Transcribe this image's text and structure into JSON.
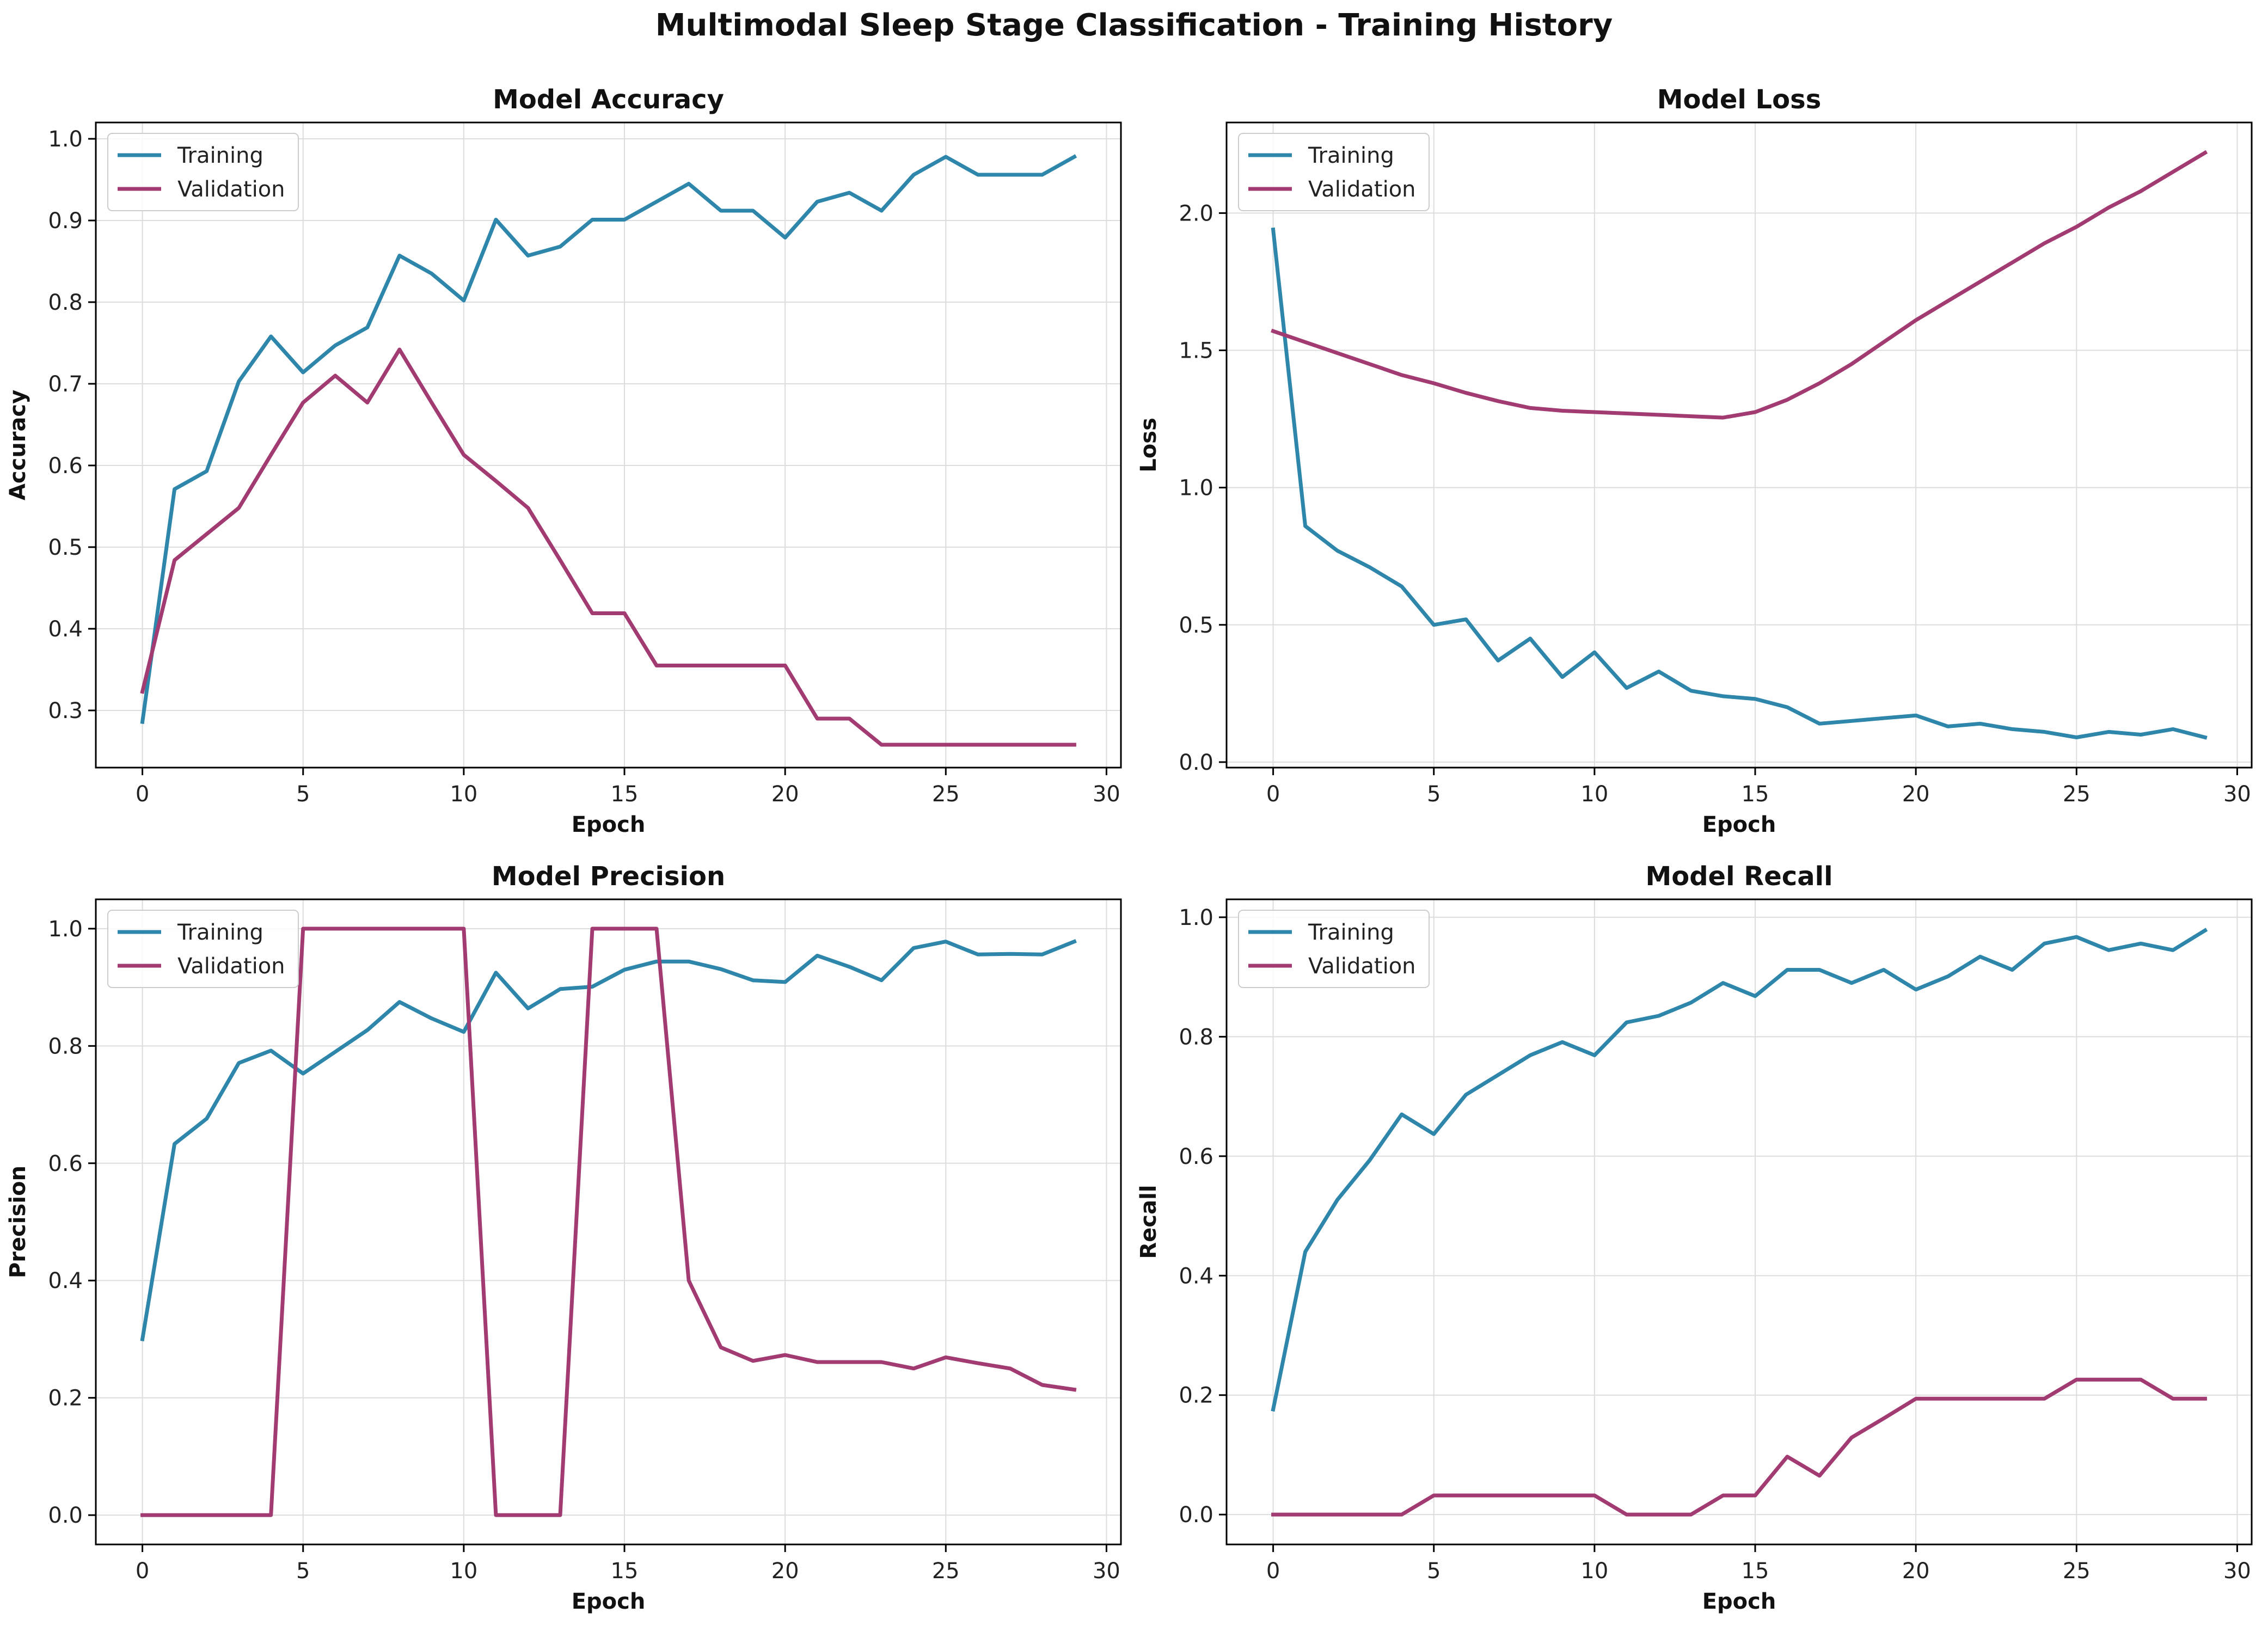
{
  "figure": {
    "title": "Multimodal Sleep Stage Classification - Training History"
  },
  "colors": {
    "training": "#2E86AB",
    "validation": "#A23B72",
    "grid": "#dddddd",
    "axes": "#000000"
  },
  "chart_data": [
    {
      "type": "line",
      "title": "Model Accuracy",
      "xlabel": "Epoch",
      "ylabel": "Accuracy",
      "xlim": [
        -1.45,
        30.45
      ],
      "ylim": [
        0.23,
        1.02
      ],
      "xticks": [
        0,
        5,
        10,
        15,
        20,
        25,
        30
      ],
      "yticks": [
        0.3,
        0.4,
        0.5,
        0.6,
        0.7,
        0.8,
        0.9,
        1.0
      ],
      "ytick_format": 1,
      "grid": true,
      "legend_position": "top-left",
      "x": [
        0,
        1,
        2,
        3,
        4,
        5,
        6,
        7,
        8,
        9,
        10,
        11,
        12,
        13,
        14,
        15,
        16,
        17,
        18,
        19,
        20,
        21,
        22,
        23,
        24,
        25,
        26,
        27,
        28,
        29
      ],
      "series": [
        {
          "name": "Training",
          "values": [
            0.286,
            0.571,
            0.593,
            0.703,
            0.758,
            0.714,
            0.747,
            0.769,
            0.857,
            0.835,
            0.802,
            0.901,
            0.857,
            0.868,
            0.901,
            0.901,
            0.923,
            0.945,
            0.912,
            0.912,
            0.879,
            0.923,
            0.934,
            0.912,
            0.956,
            0.978,
            0.956,
            0.956,
            0.956,
            0.978
          ]
        },
        {
          "name": "Validation",
          "values": [
            0.323,
            0.484,
            0.516,
            0.548,
            0.613,
            0.677,
            0.71,
            0.677,
            0.742,
            0.677,
            0.613,
            0.581,
            0.548,
            0.484,
            0.419,
            0.419,
            0.355,
            0.355,
            0.355,
            0.355,
            0.355,
            0.29,
            0.29,
            0.258,
            0.258,
            0.258,
            0.258,
            0.258,
            0.258,
            0.258
          ]
        }
      ]
    },
    {
      "type": "line",
      "title": "Model Loss",
      "xlabel": "Epoch",
      "ylabel": "Loss",
      "xlim": [
        -1.45,
        30.45
      ],
      "ylim": [
        -0.02,
        2.33
      ],
      "xticks": [
        0,
        5,
        10,
        15,
        20,
        25,
        30
      ],
      "yticks": [
        0.0,
        0.5,
        1.0,
        1.5,
        2.0
      ],
      "ytick_format": 1,
      "grid": true,
      "legend_position": "top-left",
      "x": [
        0,
        1,
        2,
        3,
        4,
        5,
        6,
        7,
        8,
        9,
        10,
        11,
        12,
        13,
        14,
        15,
        16,
        17,
        18,
        19,
        20,
        21,
        22,
        23,
        24,
        25,
        26,
        27,
        28,
        29
      ],
      "series": [
        {
          "name": "Training",
          "values": [
            1.94,
            0.86,
            0.77,
            0.71,
            0.64,
            0.5,
            0.52,
            0.37,
            0.45,
            0.31,
            0.4,
            0.27,
            0.33,
            0.26,
            0.24,
            0.23,
            0.2,
            0.14,
            0.15,
            0.16,
            0.17,
            0.13,
            0.14,
            0.12,
            0.11,
            0.09,
            0.11,
            0.1,
            0.12,
            0.09
          ]
        },
        {
          "name": "Validation",
          "values": [
            1.57,
            1.53,
            1.49,
            1.45,
            1.41,
            1.38,
            1.345,
            1.315,
            1.29,
            1.28,
            1.275,
            1.27,
            1.265,
            1.26,
            1.255,
            1.275,
            1.32,
            1.38,
            1.45,
            1.53,
            1.61,
            1.68,
            1.75,
            1.82,
            1.89,
            1.95,
            2.02,
            2.08,
            2.15,
            2.22
          ]
        }
      ]
    },
    {
      "type": "line",
      "title": "Model Precision",
      "xlabel": "Epoch",
      "ylabel": "Precision",
      "xlim": [
        -1.45,
        30.45
      ],
      "ylim": [
        -0.05,
        1.05
      ],
      "xticks": [
        0,
        5,
        10,
        15,
        20,
        25,
        30
      ],
      "yticks": [
        0.0,
        0.2,
        0.4,
        0.6,
        0.8,
        1.0
      ],
      "ytick_format": 1,
      "grid": true,
      "legend_position": "top-left",
      "x": [
        0,
        1,
        2,
        3,
        4,
        5,
        6,
        7,
        8,
        9,
        10,
        11,
        12,
        13,
        14,
        15,
        16,
        17,
        18,
        19,
        20,
        21,
        22,
        23,
        24,
        25,
        26,
        27,
        28,
        29
      ],
      "series": [
        {
          "name": "Training",
          "values": [
            0.3,
            0.633,
            0.676,
            0.771,
            0.792,
            0.753,
            0.79,
            0.827,
            0.875,
            0.847,
            0.824,
            0.925,
            0.864,
            0.897,
            0.901,
            0.93,
            0.944,
            0.944,
            0.931,
            0.912,
            0.909,
            0.954,
            0.935,
            0.912,
            0.967,
            0.978,
            0.956,
            0.957,
            0.956,
            0.978
          ]
        },
        {
          "name": "Validation",
          "values": [
            0.0,
            0.0,
            0.0,
            0.0,
            0.0,
            1.0,
            1.0,
            1.0,
            1.0,
            1.0,
            1.0,
            0.0,
            0.0,
            0.0,
            1.0,
            1.0,
            1.0,
            0.4,
            0.286,
            0.263,
            0.273,
            0.261,
            0.261,
            0.261,
            0.25,
            0.269,
            0.259,
            0.25,
            0.222,
            0.214
          ]
        }
      ]
    },
    {
      "type": "line",
      "title": "Model Recall",
      "xlabel": "Epoch",
      "ylabel": "Recall",
      "xlim": [
        -1.45,
        30.45
      ],
      "ylim": [
        -0.05,
        1.03
      ],
      "xticks": [
        0,
        5,
        10,
        15,
        20,
        25,
        30
      ],
      "yticks": [
        0.0,
        0.2,
        0.4,
        0.6,
        0.8,
        1.0
      ],
      "ytick_format": 1,
      "grid": true,
      "legend_position": "top-left",
      "x": [
        0,
        1,
        2,
        3,
        4,
        5,
        6,
        7,
        8,
        9,
        10,
        11,
        12,
        13,
        14,
        15,
        16,
        17,
        18,
        19,
        20,
        21,
        22,
        23,
        24,
        25,
        26,
        27,
        28,
        29
      ],
      "series": [
        {
          "name": "Training",
          "values": [
            0.176,
            0.44,
            0.527,
            0.593,
            0.67,
            0.637,
            0.703,
            0.736,
            0.769,
            0.791,
            0.769,
            0.824,
            0.835,
            0.857,
            0.89,
            0.868,
            0.912,
            0.912,
            0.89,
            0.912,
            0.879,
            0.901,
            0.934,
            0.912,
            0.956,
            0.967,
            0.945,
            0.956,
            0.945,
            0.978
          ]
        },
        {
          "name": "Validation",
          "values": [
            0.0,
            0.0,
            0.0,
            0.0,
            0.0,
            0.032,
            0.032,
            0.032,
            0.032,
            0.032,
            0.032,
            0.0,
            0.0,
            0.0,
            0.032,
            0.032,
            0.097,
            0.065,
            0.129,
            0.161,
            0.194,
            0.194,
            0.194,
            0.194,
            0.194,
            0.226,
            0.226,
            0.226,
            0.194,
            0.194
          ]
        }
      ]
    }
  ]
}
